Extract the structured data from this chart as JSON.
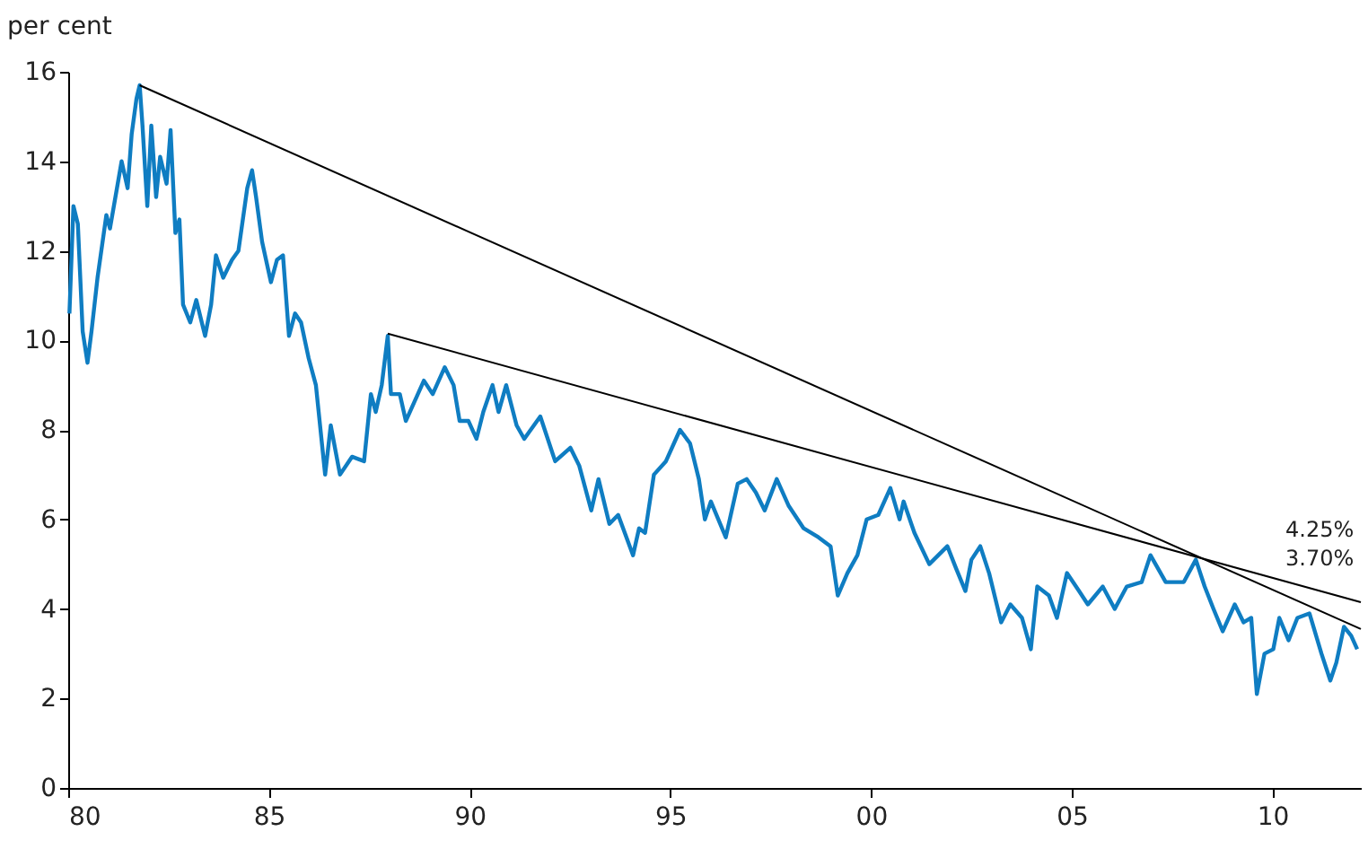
{
  "chart_data": {
    "type": "line",
    "ylabel": "per cent",
    "xlim": [
      1980,
      2012.2
    ],
    "ylim": [
      0,
      16
    ],
    "xticks": [
      {
        "value": 1980,
        "label": "80"
      },
      {
        "value": 1985,
        "label": "85"
      },
      {
        "value": 1990,
        "label": "90"
      },
      {
        "value": 1995,
        "label": "95"
      },
      {
        "value": 2000,
        "label": "00"
      },
      {
        "value": 2005,
        "label": "05"
      },
      {
        "value": 2010,
        "label": "10"
      }
    ],
    "yticks": [
      0,
      2,
      4,
      6,
      8,
      10,
      12,
      14,
      16
    ],
    "grid": false,
    "marker": "none",
    "line_style": "solid",
    "annotations": [
      "4.25%",
      "3.70%"
    ],
    "series": [
      {
        "color": "#0f7dc2",
        "x": [
          1980.03,
          1980.13,
          1980.24,
          1980.36,
          1980.48,
          1980.58,
          1980.73,
          1980.95,
          1981.04,
          1981.33,
          1981.48,
          1981.58,
          1981.7,
          1981.78,
          1981.85,
          1981.97,
          1982.07,
          1982.19,
          1982.29,
          1982.45,
          1982.55,
          1982.67,
          1982.77,
          1982.86,
          1983.04,
          1983.19,
          1983.41,
          1983.56,
          1983.68,
          1983.86,
          1984.08,
          1984.24,
          1984.46,
          1984.58,
          1984.68,
          1984.83,
          1985.05,
          1985.2,
          1985.35,
          1985.5,
          1985.65,
          1985.8,
          1985.99,
          1986.17,
          1986.4,
          1986.54,
          1986.77,
          1987.07,
          1987.37,
          1987.54,
          1987.66,
          1987.81,
          1987.96,
          1988.04,
          1988.26,
          1988.41,
          1988.71,
          1988.86,
          1989.08,
          1989.38,
          1989.6,
          1989.75,
          1989.97,
          1990.17,
          1990.34,
          1990.57,
          1990.72,
          1990.91,
          1991.17,
          1991.36,
          1991.76,
          1992.13,
          1992.51,
          1992.73,
          1993.03,
          1993.21,
          1993.48,
          1993.7,
          1994.07,
          1994.22,
          1994.37,
          1994.59,
          1994.89,
          1995.24,
          1995.49,
          1995.71,
          1995.86,
          1996.01,
          1996.38,
          1996.68,
          1996.9,
          1997.13,
          1997.35,
          1997.65,
          1997.95,
          1998.32,
          1998.69,
          1998.99,
          1999.17,
          1999.41,
          1999.66,
          1999.89,
          2000.18,
          2000.48,
          2000.71,
          2000.81,
          2001.08,
          2001.45,
          2001.9,
          2002.12,
          2002.35,
          2002.5,
          2002.72,
          2002.94,
          2003.24,
          2003.47,
          2003.76,
          2003.98,
          2004.14,
          2004.43,
          2004.63,
          2004.88,
          2005.18,
          2005.4,
          2005.77,
          2006.07,
          2006.37,
          2006.74,
          2006.96,
          2007.34,
          2007.79,
          2008.09,
          2008.31,
          2008.53,
          2008.76,
          2009.06,
          2009.28,
          2009.47,
          2009.61,
          2009.8,
          2010.02,
          2010.17,
          2010.4,
          2010.62,
          2010.92,
          2011.22,
          2011.44,
          2011.59,
          2011.78,
          2011.96,
          2012.11
        ],
        "values": [
          10.6,
          13.0,
          12.6,
          10.2,
          9.5,
          10.2,
          11.4,
          12.8,
          12.5,
          14.0,
          13.4,
          14.6,
          15.4,
          15.7,
          14.8,
          13.0,
          14.8,
          13.2,
          14.1,
          13.5,
          14.7,
          12.4,
          12.7,
          10.8,
          10.4,
          10.9,
          10.1,
          10.8,
          11.9,
          11.4,
          11.8,
          12.0,
          13.4,
          13.8,
          13.2,
          12.2,
          11.3,
          11.8,
          11.9,
          10.1,
          10.6,
          10.4,
          9.6,
          9.0,
          7.0,
          8.1,
          7.0,
          7.4,
          7.3,
          8.8,
          8.4,
          9.0,
          10.1,
          8.8,
          8.8,
          8.2,
          8.8,
          9.1,
          8.8,
          9.4,
          9.0,
          8.2,
          8.2,
          7.8,
          8.4,
          9.0,
          8.4,
          9.0,
          8.1,
          7.8,
          8.3,
          7.3,
          7.6,
          7.2,
          6.2,
          6.9,
          5.9,
          6.1,
          5.2,
          5.8,
          5.7,
          7.0,
          7.3,
          8.0,
          7.7,
          6.9,
          6.0,
          6.4,
          5.6,
          6.8,
          6.9,
          6.6,
          6.2,
          6.9,
          6.3,
          5.8,
          5.6,
          5.4,
          4.3,
          4.8,
          5.2,
          6.0,
          6.1,
          6.7,
          6.0,
          6.4,
          5.7,
          5.0,
          5.4,
          4.9,
          4.4,
          5.1,
          5.4,
          4.8,
          3.7,
          4.1,
          3.8,
          3.1,
          4.5,
          4.3,
          3.8,
          4.8,
          4.4,
          4.1,
          4.5,
          4.0,
          4.5,
          4.6,
          5.2,
          4.6,
          4.6,
          5.1,
          4.5,
          4.0,
          3.5,
          4.1,
          3.7,
          3.8,
          2.1,
          3.0,
          3.1,
          3.8,
          3.3,
          3.8,
          3.9,
          3.0,
          2.4,
          2.8,
          3.6,
          3.4,
          3.1
        ]
      },
      {
        "color": "#000000",
        "x": [
          1981.78,
          2012.2
        ],
        "values": [
          15.7,
          3.55
        ]
      },
      {
        "color": "#000000",
        "x": [
          1987.96,
          2012.2
        ],
        "values": [
          10.15,
          4.15
        ]
      }
    ]
  }
}
